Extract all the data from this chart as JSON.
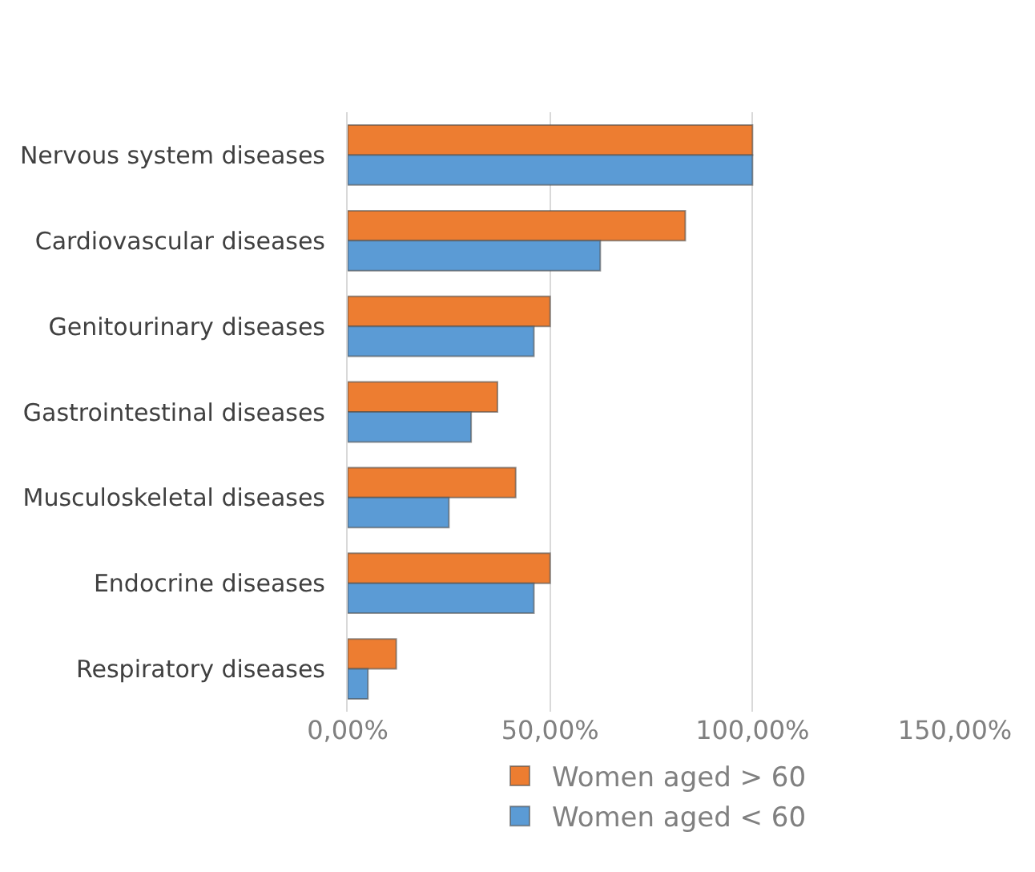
{
  "chart_data": {
    "type": "bar",
    "orientation": "horizontal",
    "categories": [
      "Nervous system diseases",
      "Cardiovascular diseases",
      "Genitourinary diseases",
      "Gastrointestinal diseases",
      "Musculoskeletal diseases",
      "Endocrine diseases",
      "Respiratory diseases"
    ],
    "series": [
      {
        "name": "Women aged > 60",
        "color": "#ed7d31",
        "values": [
          100,
          83.4,
          50,
          37,
          41.5,
          50,
          12
        ]
      },
      {
        "name": "Women aged < 60",
        "color": "#5b9bd5",
        "values": [
          100,
          62.4,
          46,
          30.5,
          25,
          46,
          5
        ]
      }
    ],
    "xlim": [
      0,
      150
    ],
    "xticks": [
      {
        "value": 0,
        "label": "0,00%"
      },
      {
        "value": 50,
        "label": "50,00%"
      },
      {
        "value": 100,
        "label": "100,00%"
      },
      {
        "value": 150,
        "label": "150,00%"
      }
    ],
    "grid": "x",
    "legend": "bottom"
  }
}
